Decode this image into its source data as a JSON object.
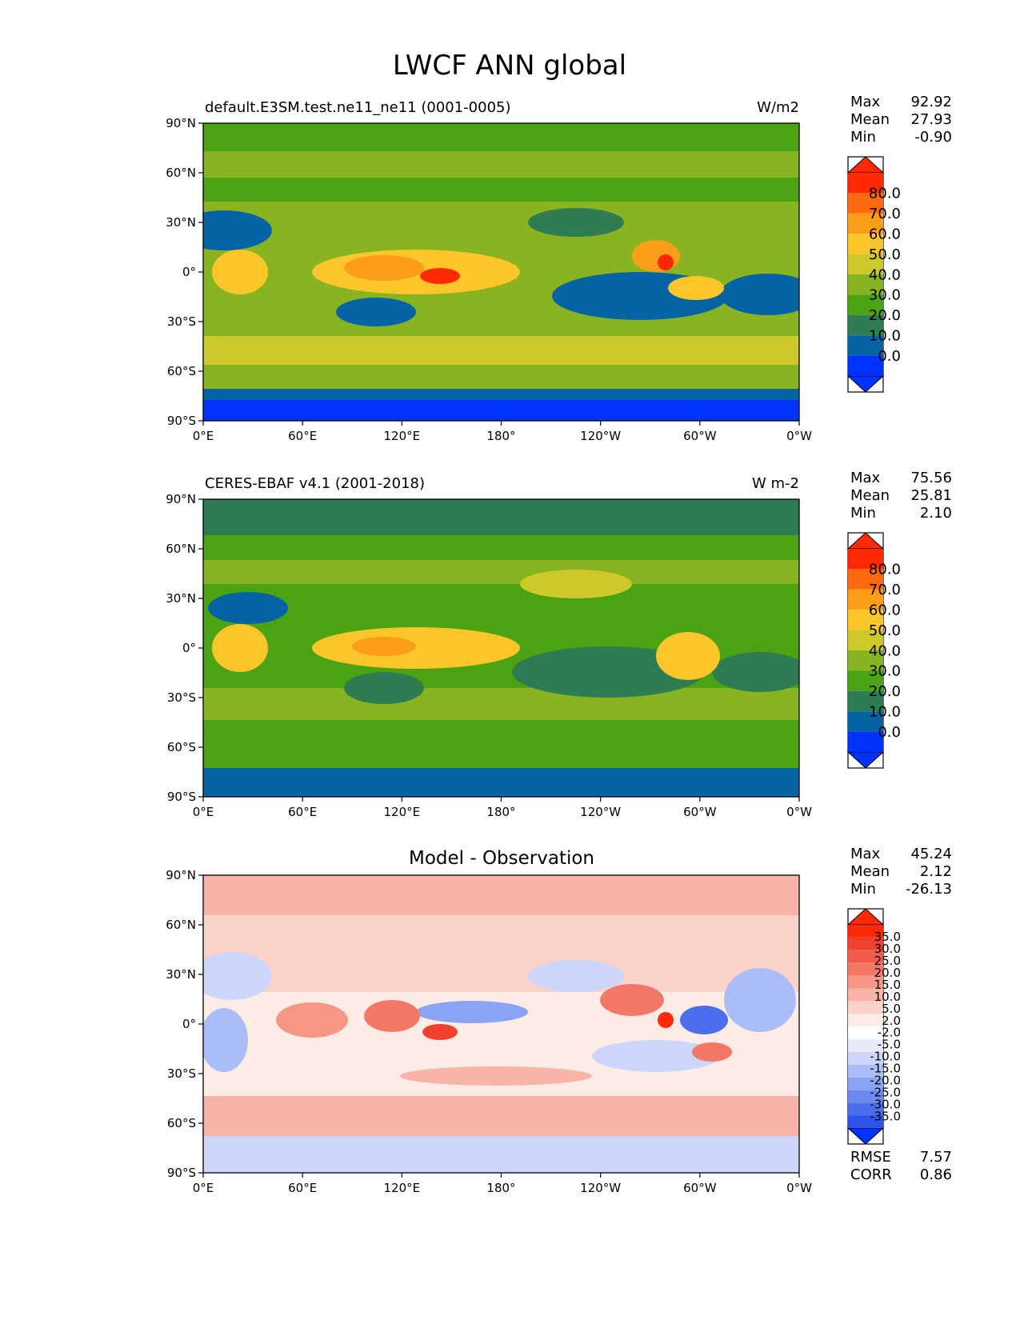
{
  "figure": {
    "title": "LWCF ANN global"
  },
  "chart_data": [
    {
      "type": "heatmap",
      "title": "default.E3SM.test.ne11_ne11 (0001-0005)",
      "units": "W/m2",
      "x_ticks": [
        "0°E",
        "60°E",
        "120°E",
        "180°",
        "120°W",
        "60°W",
        "0°W"
      ],
      "y_ticks": [
        "90°N",
        "60°N",
        "30°N",
        "0°",
        "30°S",
        "60°S",
        "90°S"
      ],
      "xlim": [
        0,
        360
      ],
      "ylim": [
        -90,
        90
      ],
      "stats": [
        {
          "label": "Max",
          "value": "92.92"
        },
        {
          "label": "Mean",
          "value": "27.93"
        },
        {
          "label": "Min",
          "value": "-0.90"
        }
      ],
      "colorbar": {
        "labels": [
          "80.0",
          "70.0",
          "60.0",
          "50.0",
          "40.0",
          "30.0",
          "20.0",
          "10.0",
          "0.0"
        ],
        "colors": [
          "#ff2a05",
          "#ff6a10",
          "#fc9d1a",
          "#fac62a",
          "#cdc92a",
          "#88b421",
          "#4ba314",
          "#2e7d52",
          "#0664a4",
          "#0033ff"
        ]
      }
    },
    {
      "type": "heatmap",
      "title": "CERES-EBAF v4.1 (2001-2018)",
      "units": "W m-2",
      "x_ticks": [
        "0°E",
        "60°E",
        "120°E",
        "180°",
        "120°W",
        "60°W",
        "0°W"
      ],
      "y_ticks": [
        "90°N",
        "60°N",
        "30°N",
        "0°",
        "30°S",
        "60°S",
        "90°S"
      ],
      "xlim": [
        0,
        360
      ],
      "ylim": [
        -90,
        90
      ],
      "stats": [
        {
          "label": "Max",
          "value": "75.56"
        },
        {
          "label": "Mean",
          "value": "25.81"
        },
        {
          "label": "Min",
          "value": "2.10"
        }
      ],
      "colorbar": {
        "labels": [
          "80.0",
          "70.0",
          "60.0",
          "50.0",
          "40.0",
          "30.0",
          "20.0",
          "10.0",
          "0.0"
        ],
        "colors": [
          "#ff2a05",
          "#ff6a10",
          "#fc9d1a",
          "#fac62a",
          "#cdc92a",
          "#88b421",
          "#4ba314",
          "#2e7d52",
          "#0664a4",
          "#0033ff"
        ]
      }
    },
    {
      "type": "heatmap",
      "title": "Model - Observation",
      "units": "",
      "x_ticks": [
        "0°E",
        "60°E",
        "120°E",
        "180°",
        "120°W",
        "60°W",
        "0°W"
      ],
      "y_ticks": [
        "90°N",
        "60°N",
        "30°N",
        "0°",
        "30°S",
        "60°S",
        "90°S"
      ],
      "xlim": [
        0,
        360
      ],
      "ylim": [
        -90,
        90
      ],
      "stats": [
        {
          "label": "Max",
          "value": "45.24"
        },
        {
          "label": "Mean",
          "value": "2.12"
        },
        {
          "label": "Min",
          "value": "-26.13"
        }
      ],
      "colorbar": {
        "labels": [
          "35.0",
          "30.0",
          "25.0",
          "20.0",
          "15.0",
          "10.0",
          "5.0",
          "2.0",
          "-2.0",
          "-5.0",
          "-10.0",
          "-15.0",
          "-20.0",
          "-25.0",
          "-30.0",
          "-35.0"
        ],
        "colors": [
          "#ff2a05",
          "#f0412e",
          "#f25c4b",
          "#f47868",
          "#f69686",
          "#f8b4a6",
          "#fbd2c8",
          "#fdebe5",
          "#ffffff",
          "#e6eafb",
          "#ccd6fa",
          "#aabdf6",
          "#8aa3f2",
          "#6b89ef",
          "#4c6eec",
          "#2e53eb",
          "#0033ff"
        ]
      },
      "metrics": [
        {
          "label": "RMSE",
          "value": "7.57"
        },
        {
          "label": "CORR",
          "value": "0.86"
        }
      ]
    }
  ]
}
